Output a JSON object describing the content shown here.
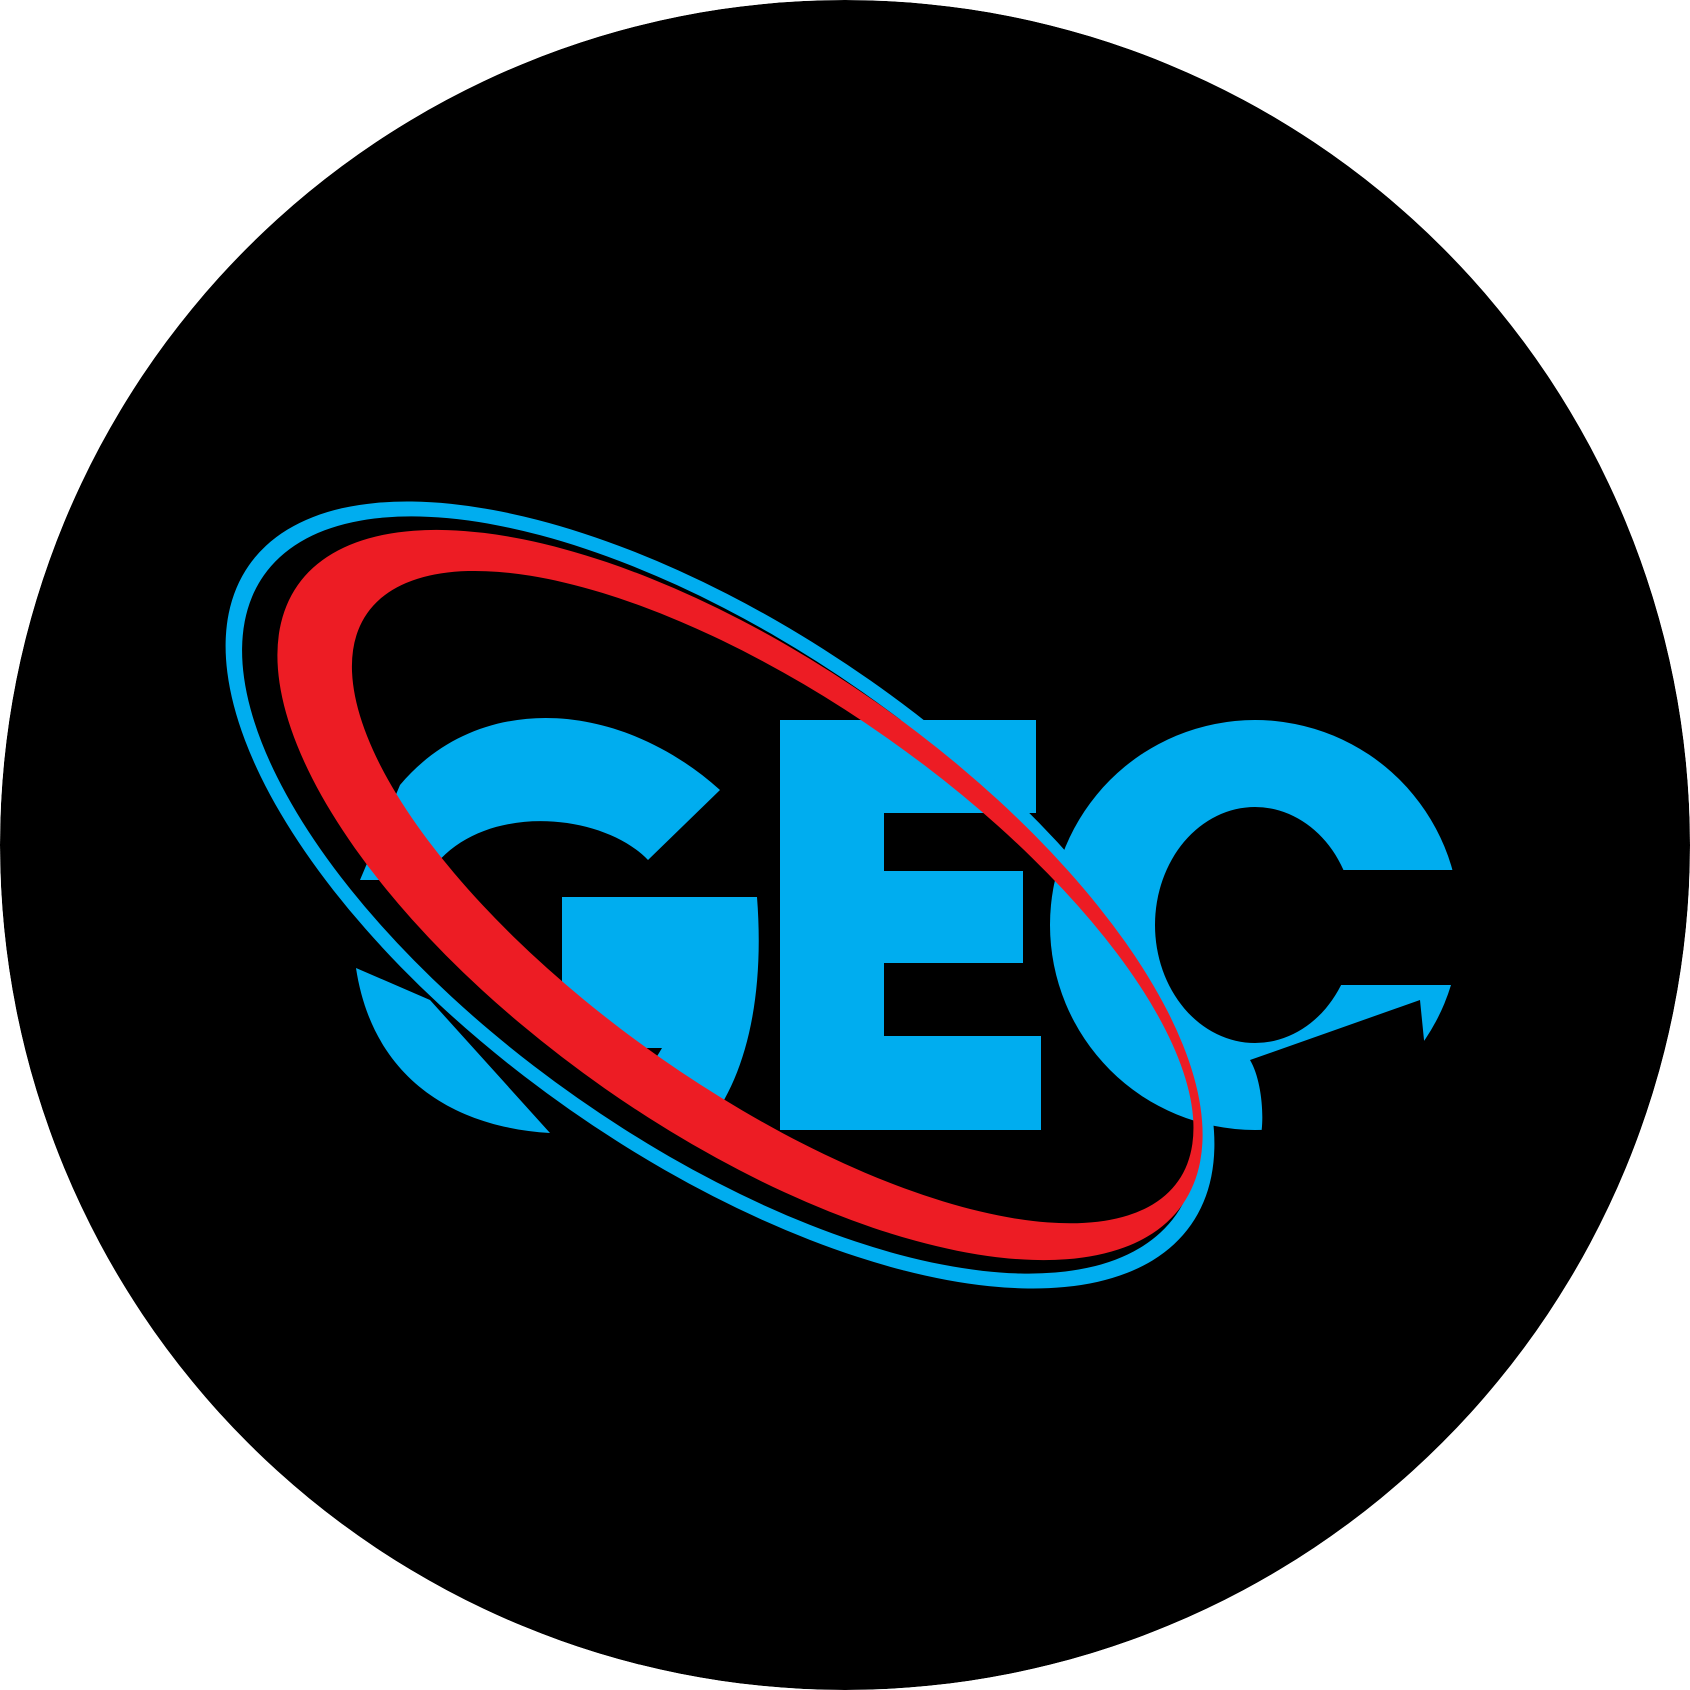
{
  "logo": {
    "wordmark": "GEC",
    "colors": {
      "background": "#000000",
      "letters": "#00ADEF",
      "swoosh_inner": "#ED1C24",
      "swoosh_outer": "#00ADEF"
    }
  }
}
